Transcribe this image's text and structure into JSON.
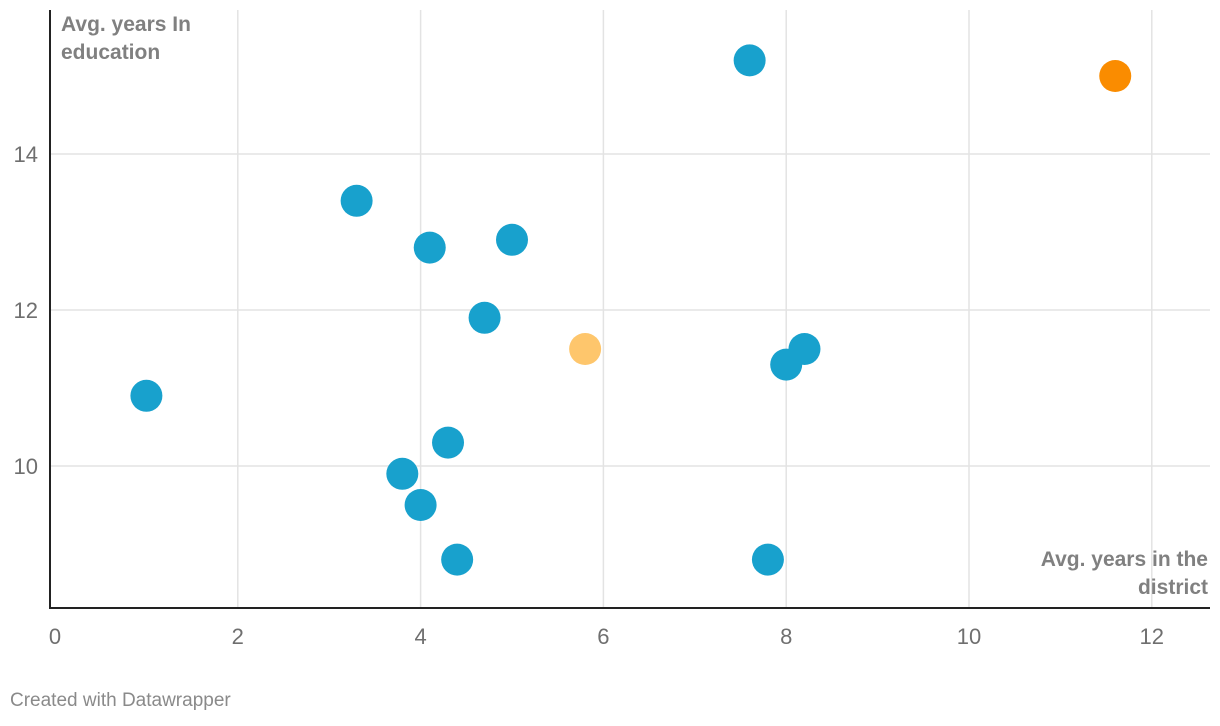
{
  "chart_data": {
    "type": "scatter",
    "xlabel": "Avg. years in the district",
    "ylabel": "Avg. years In education",
    "xlim": [
      0,
      12.6
    ],
    "ylim": [
      8.4,
      15.7
    ],
    "x_ticks": [
      0,
      2,
      4,
      6,
      8,
      10,
      12
    ],
    "y_ticks": [
      10,
      12,
      14
    ],
    "grid": true,
    "colors": {
      "default": "#18a1cd",
      "light_orange": "#fec66c",
      "orange": "#fa8c00"
    },
    "points": [
      {
        "x": 7.6,
        "y": 15.2,
        "color": "default"
      },
      {
        "x": 11.6,
        "y": 15.0,
        "color": "orange"
      },
      {
        "x": 3.3,
        "y": 13.4,
        "color": "default"
      },
      {
        "x": 4.1,
        "y": 12.8,
        "color": "default"
      },
      {
        "x": 5.0,
        "y": 12.9,
        "color": "default"
      },
      {
        "x": 4.7,
        "y": 11.9,
        "color": "default"
      },
      {
        "x": 5.8,
        "y": 11.5,
        "color": "light_orange"
      },
      {
        "x": 8.0,
        "y": 11.3,
        "color": "default"
      },
      {
        "x": 8.2,
        "y": 11.5,
        "color": "default"
      },
      {
        "x": 1.0,
        "y": 10.9,
        "color": "default"
      },
      {
        "x": 4.3,
        "y": 10.3,
        "color": "default"
      },
      {
        "x": 3.8,
        "y": 9.9,
        "color": "default"
      },
      {
        "x": 4.0,
        "y": 9.5,
        "color": "default"
      },
      {
        "x": 4.4,
        "y": 8.8,
        "color": "default"
      },
      {
        "x": 7.8,
        "y": 8.8,
        "color": "default"
      }
    ]
  },
  "footer": {
    "text": "Created with Datawrapper"
  }
}
